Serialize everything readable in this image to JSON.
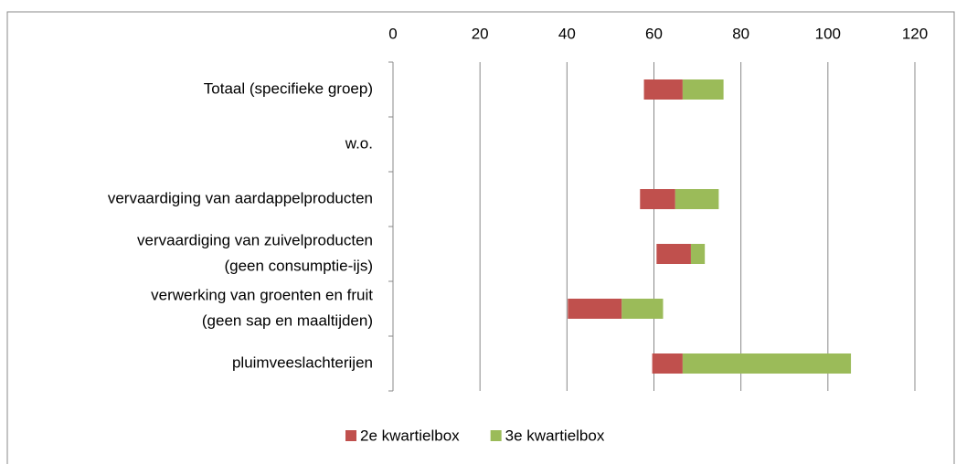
{
  "chart_data": {
    "type": "bar",
    "orientation": "horizontal",
    "stacked": true,
    "categories": [
      [
        "Totaal (specifieke groep)"
      ],
      [
        "w.o."
      ],
      [
        "vervaardiging van aardappelproducten"
      ],
      [
        "vervaardiging van zuivelproducten",
        "(geen consumptie-ijs)"
      ],
      [
        "verwerking van groenten en fruit",
        "(geen sap en maaltijden)"
      ],
      [
        "pluimveeslachterijen"
      ]
    ],
    "series": [
      {
        "color": "none",
        "values": [
          57.7,
          null,
          56.8,
          60.6,
          40.2,
          59.6
        ]
      },
      {
        "name": "2e kwartielbox",
        "color": "#c0504d",
        "values": [
          8.9,
          null,
          8.1,
          7.9,
          12.4,
          7.0
        ]
      },
      {
        "name": "3e kwartielbox",
        "color": "#9bbb59",
        "values": [
          9.4,
          null,
          10.0,
          3.2,
          9.5,
          38.7
        ]
      }
    ],
    "xlim": [
      0,
      120
    ],
    "xticks": [
      0,
      20,
      40,
      60,
      80,
      100,
      120
    ],
    "grid": true,
    "legend": "bottom"
  }
}
